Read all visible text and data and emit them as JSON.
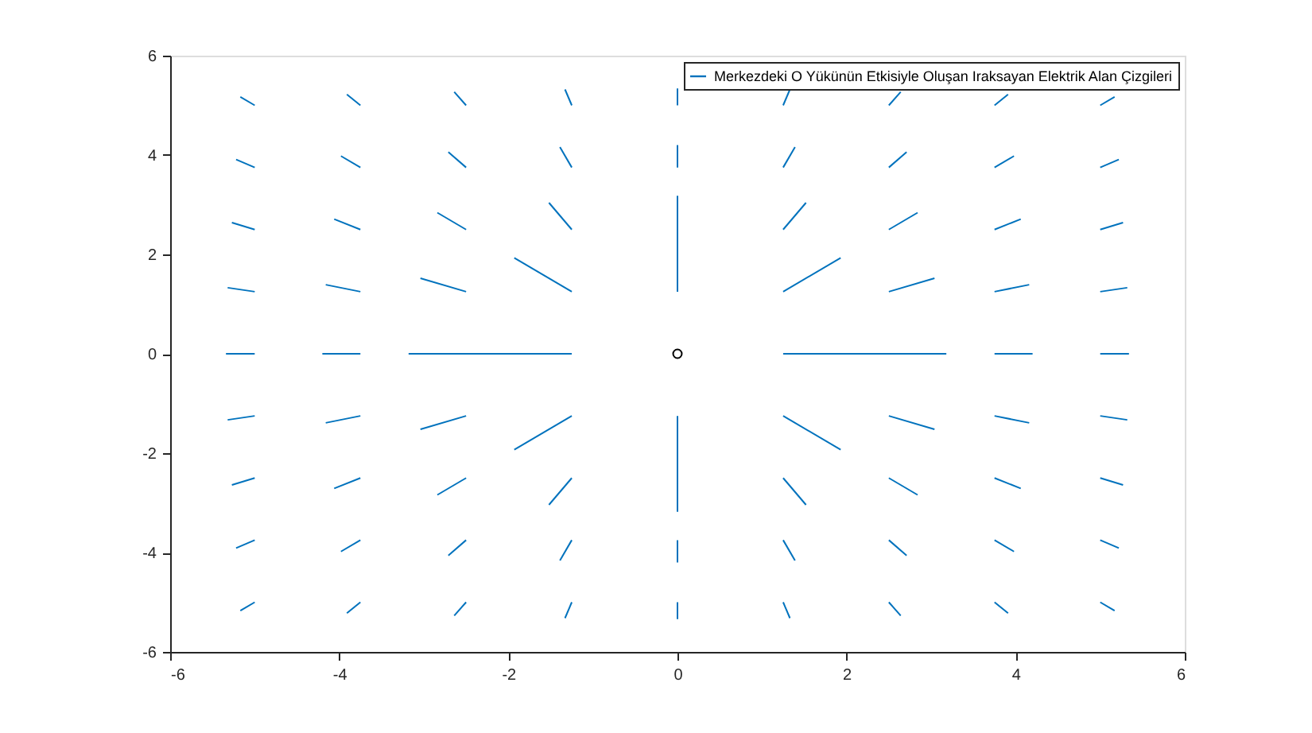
{
  "chart_data": {
    "type": "line",
    "xlim": [
      -6,
      6
    ],
    "ylim": [
      -6,
      6
    ],
    "xticks": [
      -6,
      -4,
      -2,
      0,
      2,
      4,
      6
    ],
    "yticks": [
      -6,
      -4,
      -2,
      0,
      2,
      4,
      6
    ],
    "grid": false,
    "legend": "top right",
    "marker": "none",
    "series": [
      {
        "name": "Merkezdeki O Yükünün Etkisiyle Oluşan Iraksayan Elektrik Alan Çizgileri",
        "type": "line",
        "color": "#0072bd",
        "x": [
          -5,
          -5.17
        ],
        "values": [
          -5,
          -5.17
        ]
      },
      {
        "color": "#0072bd",
        "x": [
          -5,
          -5.22
        ],
        "values": [
          -3.75,
          -3.91
        ]
      },
      {
        "color": "#0072bd",
        "x": [
          -5,
          -5.27
        ],
        "values": [
          -2.5,
          -2.64
        ]
      },
      {
        "color": "#0072bd",
        "x": [
          -5,
          -5.32
        ],
        "values": [
          -1.25,
          -1.33
        ]
      },
      {
        "color": "#0072bd",
        "x": [
          -5,
          -5.34
        ],
        "values": [
          0,
          0
        ]
      },
      {
        "color": "#0072bd",
        "x": [
          -5,
          -5.32
        ],
        "values": [
          1.25,
          1.33
        ]
      },
      {
        "color": "#0072bd",
        "x": [
          -5,
          -5.27
        ],
        "values": [
          2.5,
          2.64
        ]
      },
      {
        "color": "#0072bd",
        "x": [
          -5,
          -5.22
        ],
        "values": [
          3.75,
          3.91
        ]
      },
      {
        "color": "#0072bd",
        "x": [
          -5,
          -5.17
        ],
        "values": [
          5,
          5.17
        ]
      },
      {
        "color": "#0072bd",
        "x": [
          -3.75,
          -3.91
        ],
        "values": [
          -5,
          -5.22
        ]
      },
      {
        "color": "#0072bd",
        "x": [
          -3.75,
          -3.98
        ],
        "values": [
          -3.75,
          -3.98
        ]
      },
      {
        "color": "#0072bd",
        "x": [
          -3.75,
          -4.06
        ],
        "values": [
          -2.5,
          -2.71
        ]
      },
      {
        "color": "#0072bd",
        "x": [
          -3.75,
          -4.16
        ],
        "values": [
          -1.25,
          -1.39
        ]
      },
      {
        "color": "#0072bd",
        "x": [
          -3.75,
          -4.2
        ],
        "values": [
          0,
          0
        ]
      },
      {
        "color": "#0072bd",
        "x": [
          -3.75,
          -4.16
        ],
        "values": [
          1.25,
          1.39
        ]
      },
      {
        "color": "#0072bd",
        "x": [
          -3.75,
          -4.06
        ],
        "values": [
          2.5,
          2.71
        ]
      },
      {
        "color": "#0072bd",
        "x": [
          -3.75,
          -3.98
        ],
        "values": [
          3.75,
          3.98
        ]
      },
      {
        "color": "#0072bd",
        "x": [
          -3.75,
          -3.91
        ],
        "values": [
          5,
          5.22
        ]
      },
      {
        "color": "#0072bd",
        "x": [
          -2.5,
          -2.64
        ],
        "values": [
          -5,
          -5.27
        ]
      },
      {
        "color": "#0072bd",
        "x": [
          -2.5,
          -2.71
        ],
        "values": [
          -3.75,
          -4.06
        ]
      },
      {
        "color": "#0072bd",
        "x": [
          -2.5,
          -2.84
        ],
        "values": [
          -2.5,
          -2.84
        ]
      },
      {
        "color": "#0072bd",
        "x": [
          -2.5,
          -3.04
        ],
        "values": [
          -1.25,
          -1.52
        ]
      },
      {
        "color": "#0072bd",
        "x": [
          -2.5,
          -3.18
        ],
        "values": [
          0,
          0
        ]
      },
      {
        "color": "#0072bd",
        "x": [
          -2.5,
          -3.04
        ],
        "values": [
          1.25,
          1.52
        ]
      },
      {
        "color": "#0072bd",
        "x": [
          -2.5,
          -2.84
        ],
        "values": [
          2.5,
          2.84
        ]
      },
      {
        "color": "#0072bd",
        "x": [
          -2.5,
          -2.71
        ],
        "values": [
          3.75,
          4.06
        ]
      },
      {
        "color": "#0072bd",
        "x": [
          -2.5,
          -2.64
        ],
        "values": [
          5,
          5.27
        ]
      },
      {
        "color": "#0072bd",
        "x": [
          -1.25,
          -1.33
        ],
        "values": [
          -5,
          -5.32
        ]
      },
      {
        "color": "#0072bd",
        "x": [
          -1.25,
          -1.39
        ],
        "values": [
          -3.75,
          -4.16
        ]
      },
      {
        "color": "#0072bd",
        "x": [
          -1.25,
          -1.52
        ],
        "values": [
          -2.5,
          -3.04
        ]
      },
      {
        "color": "#0072bd",
        "x": [
          -1.25,
          -1.93
        ],
        "values": [
          -1.25,
          -1.93
        ]
      },
      {
        "color": "#0072bd",
        "x": [
          -1.25,
          -2.61
        ],
        "values": [
          0,
          0
        ]
      },
      {
        "color": "#0072bd",
        "x": [
          -1.25,
          -1.93
        ],
        "values": [
          1.25,
          1.93
        ]
      },
      {
        "color": "#0072bd",
        "x": [
          -1.25,
          -1.52
        ],
        "values": [
          2.5,
          3.04
        ]
      },
      {
        "color": "#0072bd",
        "x": [
          -1.25,
          -1.39
        ],
        "values": [
          3.75,
          4.16
        ]
      },
      {
        "color": "#0072bd",
        "x": [
          -1.25,
          -1.33
        ],
        "values": [
          5,
          5.32
        ]
      },
      {
        "color": "#0072bd",
        "x": [
          0,
          0
        ],
        "values": [
          -5,
          -5.34
        ]
      },
      {
        "color": "#0072bd",
        "x": [
          0,
          0
        ],
        "values": [
          -3.75,
          -4.2
        ]
      },
      {
        "color": "#0072bd",
        "x": [
          0,
          0
        ],
        "values": [
          -2.5,
          -3.18
        ]
      },
      {
        "color": "#0072bd",
        "x": [
          0,
          0
        ],
        "values": [
          -1.25,
          -2.61
        ]
      },
      {
        "color": "#0072bd",
        "x": [
          0,
          0
        ],
        "values": [
          1.25,
          2.61
        ]
      },
      {
        "color": "#0072bd",
        "x": [
          0,
          0
        ],
        "values": [
          2.5,
          3.18
        ]
      },
      {
        "color": "#0072bd",
        "x": [
          0,
          0
        ],
        "values": [
          3.75,
          4.2
        ]
      },
      {
        "color": "#0072bd",
        "x": [
          0,
          0
        ],
        "values": [
          5,
          5.34
        ]
      },
      {
        "color": "#0072bd",
        "x": [
          1.25,
          1.33
        ],
        "values": [
          -5,
          -5.32
        ]
      },
      {
        "color": "#0072bd",
        "x": [
          1.25,
          1.39
        ],
        "values": [
          -3.75,
          -4.16
        ]
      },
      {
        "color": "#0072bd",
        "x": [
          1.25,
          1.52
        ],
        "values": [
          -2.5,
          -3.04
        ]
      },
      {
        "color": "#0072bd",
        "x": [
          1.25,
          1.93
        ],
        "values": [
          -1.25,
          -1.93
        ]
      },
      {
        "color": "#0072bd",
        "x": [
          1.25,
          2.61
        ],
        "values": [
          0,
          0
        ]
      },
      {
        "color": "#0072bd",
        "x": [
          1.25,
          1.93
        ],
        "values": [
          1.25,
          1.93
        ]
      },
      {
        "color": "#0072bd",
        "x": [
          1.25,
          1.52
        ],
        "values": [
          2.5,
          3.04
        ]
      },
      {
        "color": "#0072bd",
        "x": [
          1.25,
          1.39
        ],
        "values": [
          3.75,
          4.16
        ]
      },
      {
        "color": "#0072bd",
        "x": [
          1.25,
          1.33
        ],
        "values": [
          5,
          5.32
        ]
      },
      {
        "color": "#0072bd",
        "x": [
          2.5,
          2.64
        ],
        "values": [
          -5,
          -5.27
        ]
      },
      {
        "color": "#0072bd",
        "x": [
          2.5,
          2.71
        ],
        "values": [
          -3.75,
          -4.06
        ]
      },
      {
        "color": "#0072bd",
        "x": [
          2.5,
          2.84
        ],
        "values": [
          -2.5,
          -2.84
        ]
      },
      {
        "color": "#0072bd",
        "x": [
          2.5,
          3.04
        ],
        "values": [
          -1.25,
          -1.52
        ]
      },
      {
        "color": "#0072bd",
        "x": [
          2.5,
          3.18
        ],
        "values": [
          0,
          0
        ]
      },
      {
        "color": "#0072bd",
        "x": [
          2.5,
          3.04
        ],
        "values": [
          1.25,
          1.52
        ]
      },
      {
        "color": "#0072bd",
        "x": [
          2.5,
          2.84
        ],
        "values": [
          2.5,
          2.84
        ]
      },
      {
        "color": "#0072bd",
        "x": [
          2.5,
          2.71
        ],
        "values": [
          3.75,
          4.06
        ]
      },
      {
        "color": "#0072bd",
        "x": [
          2.5,
          2.64
        ],
        "values": [
          5,
          5.27
        ]
      },
      {
        "color": "#0072bd",
        "x": [
          3.75,
          3.91
        ],
        "values": [
          -5,
          -5.22
        ]
      },
      {
        "color": "#0072bd",
        "x": [
          3.75,
          3.98
        ],
        "values": [
          -3.75,
          -3.98
        ]
      },
      {
        "color": "#0072bd",
        "x": [
          3.75,
          4.06
        ],
        "values": [
          -2.5,
          -2.71
        ]
      },
      {
        "color": "#0072bd",
        "x": [
          3.75,
          4.16
        ],
        "values": [
          -1.25,
          -1.39
        ]
      },
      {
        "color": "#0072bd",
        "x": [
          3.75,
          4.2
        ],
        "values": [
          0,
          0
        ]
      },
      {
        "color": "#0072bd",
        "x": [
          3.75,
          4.16
        ],
        "values": [
          1.25,
          1.39
        ]
      },
      {
        "color": "#0072bd",
        "x": [
          3.75,
          4.06
        ],
        "values": [
          2.5,
          2.71
        ]
      },
      {
        "color": "#0072bd",
        "x": [
          3.75,
          3.98
        ],
        "values": [
          3.75,
          3.98
        ]
      },
      {
        "color": "#0072bd",
        "x": [
          3.75,
          3.91
        ],
        "values": [
          5,
          5.22
        ]
      },
      {
        "color": "#0072bd",
        "x": [
          5,
          5.17
        ],
        "values": [
          -5,
          -5.17
        ]
      },
      {
        "color": "#0072bd",
        "x": [
          5,
          5.22
        ],
        "values": [
          -3.75,
          -3.91
        ]
      },
      {
        "color": "#0072bd",
        "x": [
          5,
          5.27
        ],
        "values": [
          -2.5,
          -2.64
        ]
      },
      {
        "color": "#0072bd",
        "x": [
          5,
          5.32
        ],
        "values": [
          -1.25,
          -1.33
        ]
      },
      {
        "color": "#0072bd",
        "x": [
          5,
          5.34
        ],
        "values": [
          0,
          0
        ]
      },
      {
        "color": "#0072bd",
        "x": [
          5,
          5.32
        ],
        "values": [
          1.25,
          1.33
        ]
      },
      {
        "color": "#0072bd",
        "x": [
          5,
          5.27
        ],
        "values": [
          2.5,
          2.64
        ]
      },
      {
        "color": "#0072bd",
        "x": [
          5,
          5.22
        ],
        "values": [
          3.75,
          3.91
        ]
      },
      {
        "color": "#0072bd",
        "x": [
          5,
          5.17
        ],
        "values": [
          5,
          5.17
        ]
      },
      {
        "type": "scatter",
        "marker": "circle",
        "color": "#000000",
        "x": [
          0
        ],
        "values": [
          0
        ]
      }
    ]
  }
}
